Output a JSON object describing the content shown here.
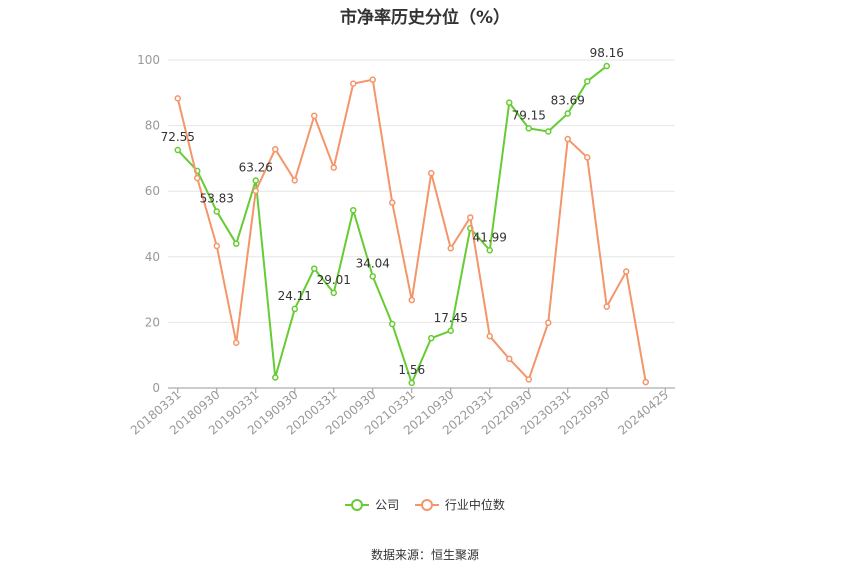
{
  "title": "市净率历史分位（%）",
  "source": "数据来源：恒生聚源",
  "colors": {
    "company": "#66cc33",
    "industry": "#f4956a",
    "grid": "#e6e6e6",
    "axis": "#999999"
  },
  "chart_data": {
    "type": "line",
    "title": "市净率历史分位（%）",
    "ylim": [
      0,
      100
    ],
    "yticks": [
      0,
      20,
      40,
      60,
      80,
      100
    ],
    "grid": true,
    "legend_position": "bottom",
    "x_tick_labels": [
      "20180331",
      "20180930",
      "20190331",
      "20190930",
      "20200331",
      "20200930",
      "20210331",
      "20210930",
      "20220331",
      "20220930",
      "20230331",
      "20230930",
      "20240425"
    ],
    "x": [
      "20180331",
      "20180630",
      "20180930",
      "20181231",
      "20190331",
      "20190630",
      "20190930",
      "20191231",
      "20200331",
      "20200630",
      "20200930",
      "20201231",
      "20210331",
      "20210630",
      "20210930",
      "20211231",
      "20220331",
      "20220630",
      "20220930",
      "20221231",
      "20230331",
      "20230630",
      "20230930",
      "20231231",
      "20240331",
      "20240425"
    ],
    "series": [
      {
        "name": "公司",
        "color": "#66cc33",
        "values": [
          72.55,
          66.2,
          53.83,
          44.0,
          63.26,
          3.2,
          24.11,
          36.4,
          29.01,
          54.2,
          34.04,
          19.5,
          1.56,
          15.2,
          17.45,
          48.7,
          41.99,
          87.0,
          79.15,
          78.2,
          83.69,
          93.5,
          98.16,
          null,
          null,
          null
        ],
        "labels": {
          "0": "72.55",
          "2": "53.83",
          "4": "63.26",
          "6": "24.11",
          "8": "29.01",
          "10": "34.04",
          "12": "1.56",
          "14": "17.45",
          "16": "41.99",
          "18": "79.15",
          "20": "83.69",
          "22": "98.16"
        }
      },
      {
        "name": "行业中位数",
        "color": "#f4956a",
        "values": [
          88.3,
          64.0,
          43.3,
          13.8,
          60.1,
          72.8,
          63.3,
          83.0,
          67.2,
          92.8,
          94.0,
          56.5,
          26.8,
          65.5,
          42.6,
          52.0,
          15.8,
          8.9,
          2.6,
          19.9,
          75.9,
          70.3,
          24.8,
          35.5,
          1.8,
          null
        ],
        "labels": {}
      }
    ]
  }
}
